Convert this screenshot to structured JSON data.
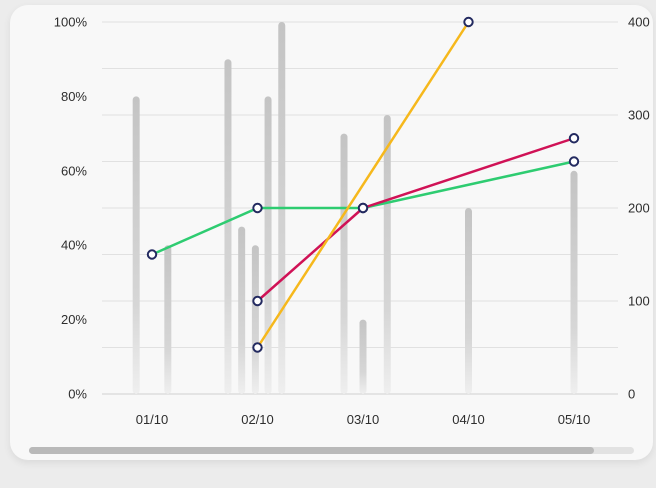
{
  "chart_data": {
    "type": "bar+line",
    "x_categories": [
      "01/10",
      "02/10",
      "03/10",
      "04/10",
      "05/10"
    ],
    "left_axis": {
      "ticks": [
        "0%",
        "20%",
        "40%",
        "60%",
        "80%",
        "100%"
      ],
      "min": 0,
      "max": 100
    },
    "right_axis": {
      "ticks": [
        "0",
        "100",
        "200",
        "300",
        "400"
      ],
      "min": 0,
      "max": 400
    },
    "bars": {
      "axis": "left",
      "points": [
        {
          "x": 0.85,
          "value": 80
        },
        {
          "x": 1.15,
          "value": 40
        },
        {
          "x": 1.72,
          "value": 90
        },
        {
          "x": 1.85,
          "value": 45
        },
        {
          "x": 1.98,
          "value": 40
        },
        {
          "x": 2.1,
          "value": 80
        },
        {
          "x": 2.23,
          "value": 100
        },
        {
          "x": 2.82,
          "value": 70
        },
        {
          "x": 3.0,
          "value": 20
        },
        {
          "x": 3.23,
          "value": 75
        },
        {
          "x": 4.0,
          "value": 50
        },
        {
          "x": 5.0,
          "value": 60
        }
      ]
    },
    "series": [
      {
        "color": "#2ecc71",
        "axis": "right",
        "x": [
          1,
          2,
          3,
          5
        ],
        "values": [
          150,
          200,
          200,
          250
        ]
      },
      {
        "color": "#d01256",
        "axis": "right",
        "x": [
          2,
          3,
          5
        ],
        "values": [
          100,
          200,
          275
        ]
      },
      {
        "color": "#f6b81c",
        "axis": "right",
        "x": [
          2,
          4
        ],
        "values": [
          50,
          400
        ]
      }
    ],
    "grid": true,
    "scrollbar": true
  }
}
